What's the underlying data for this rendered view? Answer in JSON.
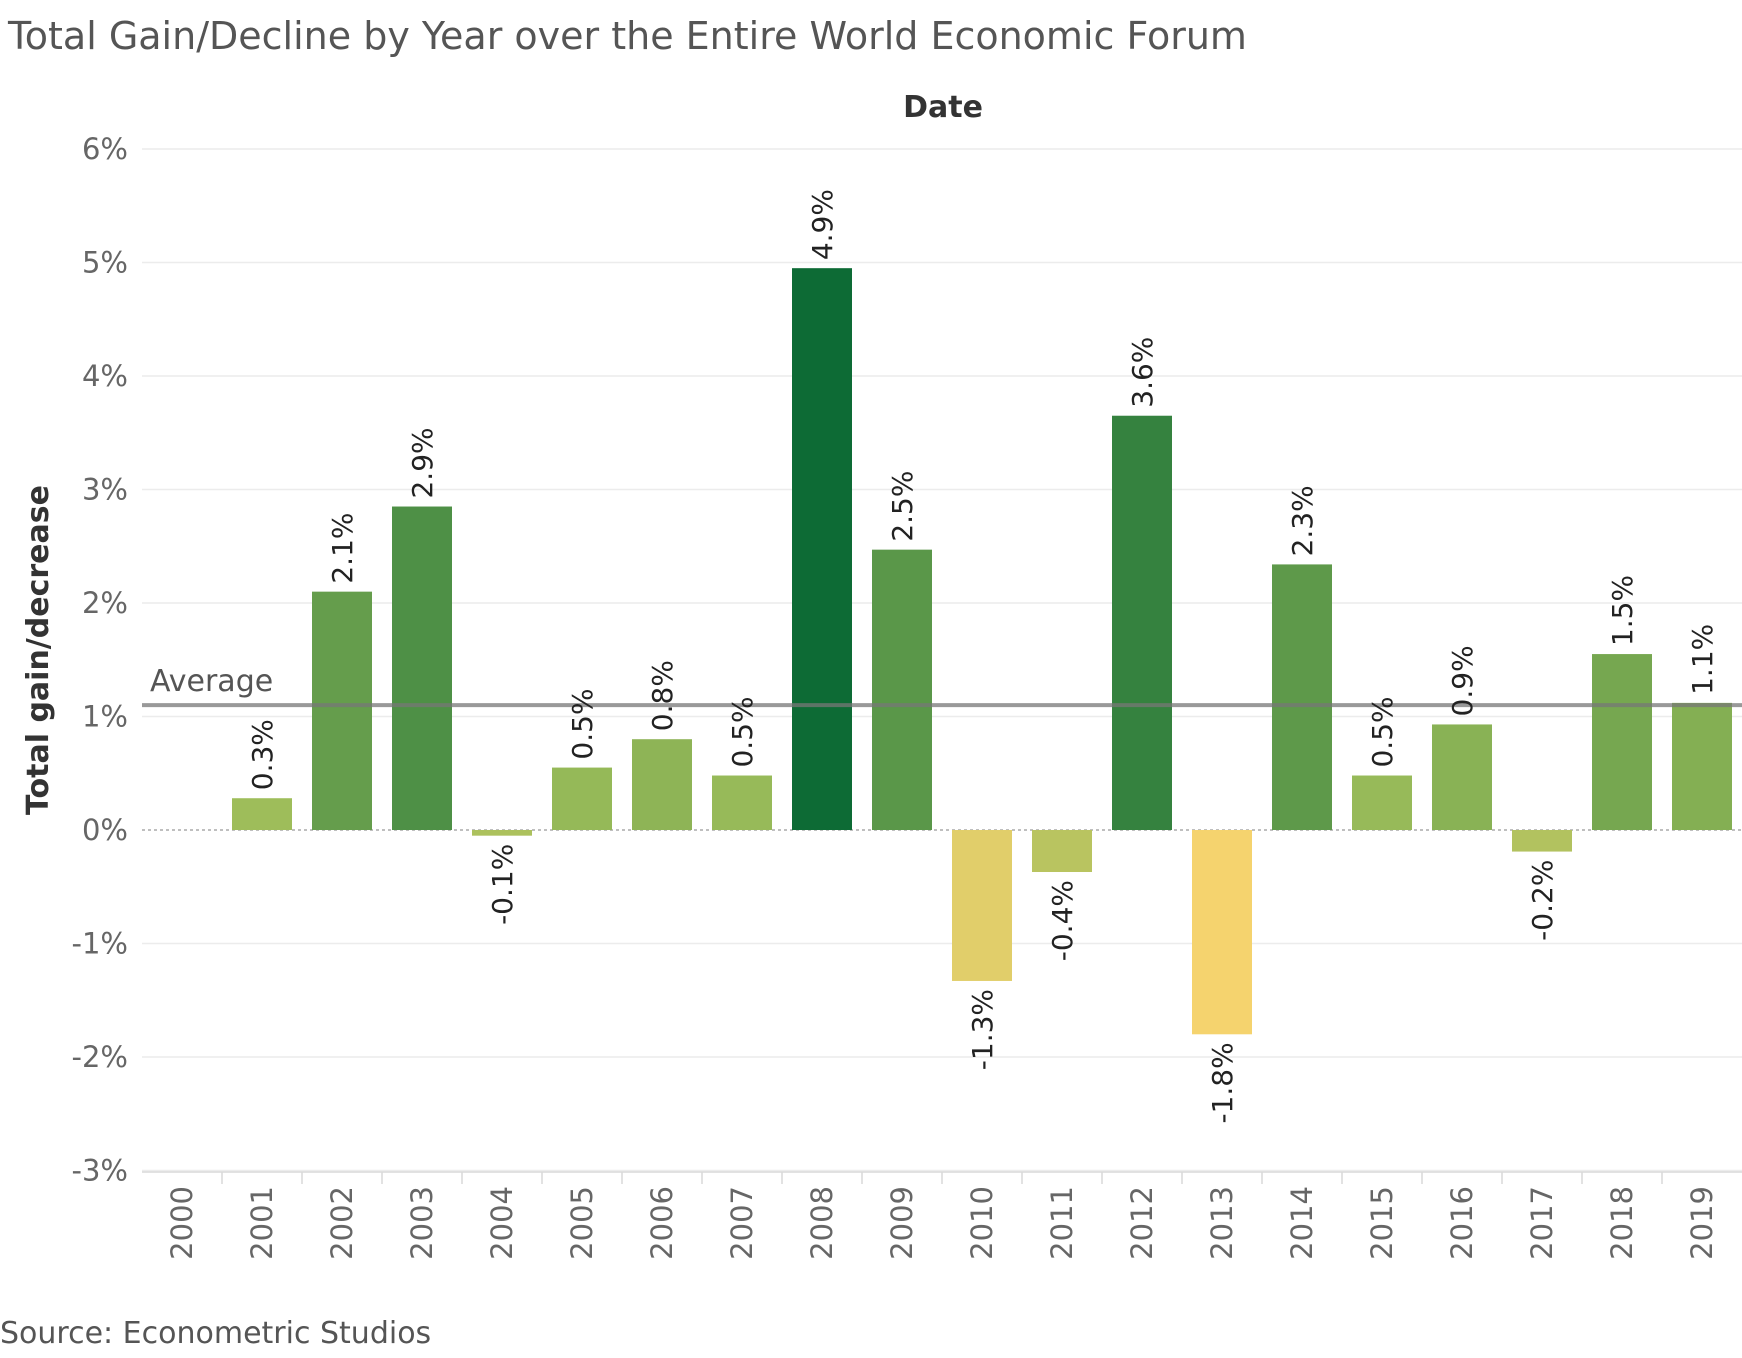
{
  "title": "Total Gain/Decline by Year over the Entire World Economic Forum",
  "source": "Source: Econometric Studios",
  "chart_data": {
    "type": "bar",
    "title": "Total Gain/Decline by Year over the Entire World Economic Forum",
    "xlabel": "Date",
    "ylabel": "Total gain/decrease",
    "ylim": [
      -3,
      6
    ],
    "yticks": [
      6,
      5,
      4,
      3,
      2,
      1,
      0,
      -1,
      -2,
      -3
    ],
    "ytick_labels": [
      "6%",
      "5%",
      "4%",
      "3%",
      "2%",
      "1%",
      "0%",
      "-1%",
      "-2%",
      "-3%"
    ],
    "categories": [
      "2000",
      "2001",
      "2002",
      "2003",
      "2004",
      "2005",
      "2006",
      "2007",
      "2008",
      "2009",
      "2010",
      "2011",
      "2012",
      "2013",
      "2014",
      "2015",
      "2016",
      "2017",
      "2018",
      "2019"
    ],
    "values": [
      null,
      0.28,
      2.1,
      2.85,
      -0.05,
      0.55,
      0.8,
      0.48,
      4.95,
      2.47,
      -1.33,
      -0.37,
      3.65,
      -1.8,
      2.34,
      0.48,
      0.93,
      -0.19,
      1.55,
      1.12
    ],
    "labels": [
      "",
      "0.3%",
      "2.1%",
      "2.9%",
      "-0.1%",
      "0.5%",
      "0.8%",
      "0.5%",
      "4.9%",
      "2.5%",
      "-1.3%",
      "-0.4%",
      "3.6%",
      "-1.8%",
      "2.3%",
      "0.5%",
      "0.9%",
      "-0.2%",
      "1.5%",
      "1.1%"
    ],
    "reference_line": {
      "label": "Average",
      "value": 1.1
    },
    "color_scale": {
      "low": "#f5d36e",
      "mid": "#9dbd5a",
      "high": "#0d6b35"
    },
    "grid": true,
    "legend": "none"
  }
}
